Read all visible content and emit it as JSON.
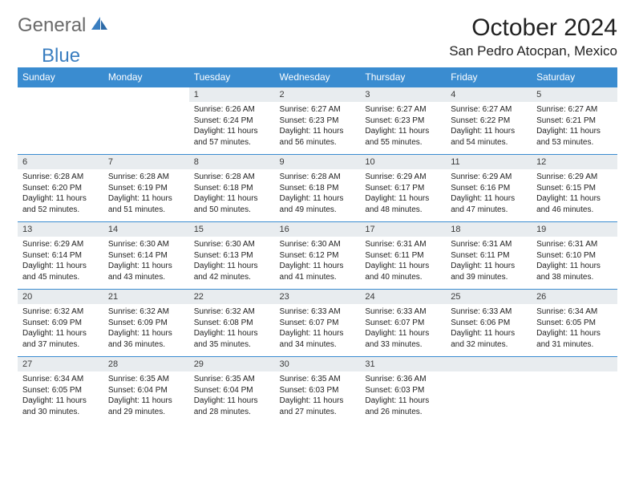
{
  "logo": {
    "text1": "General",
    "text2": "Blue"
  },
  "title": "October 2024",
  "location": "San Pedro Atocpan, Mexico",
  "dayNames": [
    "Sunday",
    "Monday",
    "Tuesday",
    "Wednesday",
    "Thursday",
    "Friday",
    "Saturday"
  ],
  "colors": {
    "headerBg": "#3a8cd0",
    "dayNumBg": "#e8ecef",
    "borderTop": "#3a8cd0",
    "logoGray": "#6a6a6a",
    "logoBlue": "#3a7ec0"
  },
  "weeks": [
    [
      {
        "n": "",
        "lines": []
      },
      {
        "n": "",
        "lines": []
      },
      {
        "n": "1",
        "lines": [
          "Sunrise: 6:26 AM",
          "Sunset: 6:24 PM",
          "Daylight: 11 hours and 57 minutes."
        ]
      },
      {
        "n": "2",
        "lines": [
          "Sunrise: 6:27 AM",
          "Sunset: 6:23 PM",
          "Daylight: 11 hours and 56 minutes."
        ]
      },
      {
        "n": "3",
        "lines": [
          "Sunrise: 6:27 AM",
          "Sunset: 6:23 PM",
          "Daylight: 11 hours and 55 minutes."
        ]
      },
      {
        "n": "4",
        "lines": [
          "Sunrise: 6:27 AM",
          "Sunset: 6:22 PM",
          "Daylight: 11 hours and 54 minutes."
        ]
      },
      {
        "n": "5",
        "lines": [
          "Sunrise: 6:27 AM",
          "Sunset: 6:21 PM",
          "Daylight: 11 hours and 53 minutes."
        ]
      }
    ],
    [
      {
        "n": "6",
        "lines": [
          "Sunrise: 6:28 AM",
          "Sunset: 6:20 PM",
          "Daylight: 11 hours and 52 minutes."
        ]
      },
      {
        "n": "7",
        "lines": [
          "Sunrise: 6:28 AM",
          "Sunset: 6:19 PM",
          "Daylight: 11 hours and 51 minutes."
        ]
      },
      {
        "n": "8",
        "lines": [
          "Sunrise: 6:28 AM",
          "Sunset: 6:18 PM",
          "Daylight: 11 hours and 50 minutes."
        ]
      },
      {
        "n": "9",
        "lines": [
          "Sunrise: 6:28 AM",
          "Sunset: 6:18 PM",
          "Daylight: 11 hours and 49 minutes."
        ]
      },
      {
        "n": "10",
        "lines": [
          "Sunrise: 6:29 AM",
          "Sunset: 6:17 PM",
          "Daylight: 11 hours and 48 minutes."
        ]
      },
      {
        "n": "11",
        "lines": [
          "Sunrise: 6:29 AM",
          "Sunset: 6:16 PM",
          "Daylight: 11 hours and 47 minutes."
        ]
      },
      {
        "n": "12",
        "lines": [
          "Sunrise: 6:29 AM",
          "Sunset: 6:15 PM",
          "Daylight: 11 hours and 46 minutes."
        ]
      }
    ],
    [
      {
        "n": "13",
        "lines": [
          "Sunrise: 6:29 AM",
          "Sunset: 6:14 PM",
          "Daylight: 11 hours and 45 minutes."
        ]
      },
      {
        "n": "14",
        "lines": [
          "Sunrise: 6:30 AM",
          "Sunset: 6:14 PM",
          "Daylight: 11 hours and 43 minutes."
        ]
      },
      {
        "n": "15",
        "lines": [
          "Sunrise: 6:30 AM",
          "Sunset: 6:13 PM",
          "Daylight: 11 hours and 42 minutes."
        ]
      },
      {
        "n": "16",
        "lines": [
          "Sunrise: 6:30 AM",
          "Sunset: 6:12 PM",
          "Daylight: 11 hours and 41 minutes."
        ]
      },
      {
        "n": "17",
        "lines": [
          "Sunrise: 6:31 AM",
          "Sunset: 6:11 PM",
          "Daylight: 11 hours and 40 minutes."
        ]
      },
      {
        "n": "18",
        "lines": [
          "Sunrise: 6:31 AM",
          "Sunset: 6:11 PM",
          "Daylight: 11 hours and 39 minutes."
        ]
      },
      {
        "n": "19",
        "lines": [
          "Sunrise: 6:31 AM",
          "Sunset: 6:10 PM",
          "Daylight: 11 hours and 38 minutes."
        ]
      }
    ],
    [
      {
        "n": "20",
        "lines": [
          "Sunrise: 6:32 AM",
          "Sunset: 6:09 PM",
          "Daylight: 11 hours and 37 minutes."
        ]
      },
      {
        "n": "21",
        "lines": [
          "Sunrise: 6:32 AM",
          "Sunset: 6:09 PM",
          "Daylight: 11 hours and 36 minutes."
        ]
      },
      {
        "n": "22",
        "lines": [
          "Sunrise: 6:32 AM",
          "Sunset: 6:08 PM",
          "Daylight: 11 hours and 35 minutes."
        ]
      },
      {
        "n": "23",
        "lines": [
          "Sunrise: 6:33 AM",
          "Sunset: 6:07 PM",
          "Daylight: 11 hours and 34 minutes."
        ]
      },
      {
        "n": "24",
        "lines": [
          "Sunrise: 6:33 AM",
          "Sunset: 6:07 PM",
          "Daylight: 11 hours and 33 minutes."
        ]
      },
      {
        "n": "25",
        "lines": [
          "Sunrise: 6:33 AM",
          "Sunset: 6:06 PM",
          "Daylight: 11 hours and 32 minutes."
        ]
      },
      {
        "n": "26",
        "lines": [
          "Sunrise: 6:34 AM",
          "Sunset: 6:05 PM",
          "Daylight: 11 hours and 31 minutes."
        ]
      }
    ],
    [
      {
        "n": "27",
        "lines": [
          "Sunrise: 6:34 AM",
          "Sunset: 6:05 PM",
          "Daylight: 11 hours and 30 minutes."
        ]
      },
      {
        "n": "28",
        "lines": [
          "Sunrise: 6:35 AM",
          "Sunset: 6:04 PM",
          "Daylight: 11 hours and 29 minutes."
        ]
      },
      {
        "n": "29",
        "lines": [
          "Sunrise: 6:35 AM",
          "Sunset: 6:04 PM",
          "Daylight: 11 hours and 28 minutes."
        ]
      },
      {
        "n": "30",
        "lines": [
          "Sunrise: 6:35 AM",
          "Sunset: 6:03 PM",
          "Daylight: 11 hours and 27 minutes."
        ]
      },
      {
        "n": "31",
        "lines": [
          "Sunrise: 6:36 AM",
          "Sunset: 6:03 PM",
          "Daylight: 11 hours and 26 minutes."
        ]
      },
      {
        "n": "",
        "lines": []
      },
      {
        "n": "",
        "lines": []
      }
    ]
  ]
}
